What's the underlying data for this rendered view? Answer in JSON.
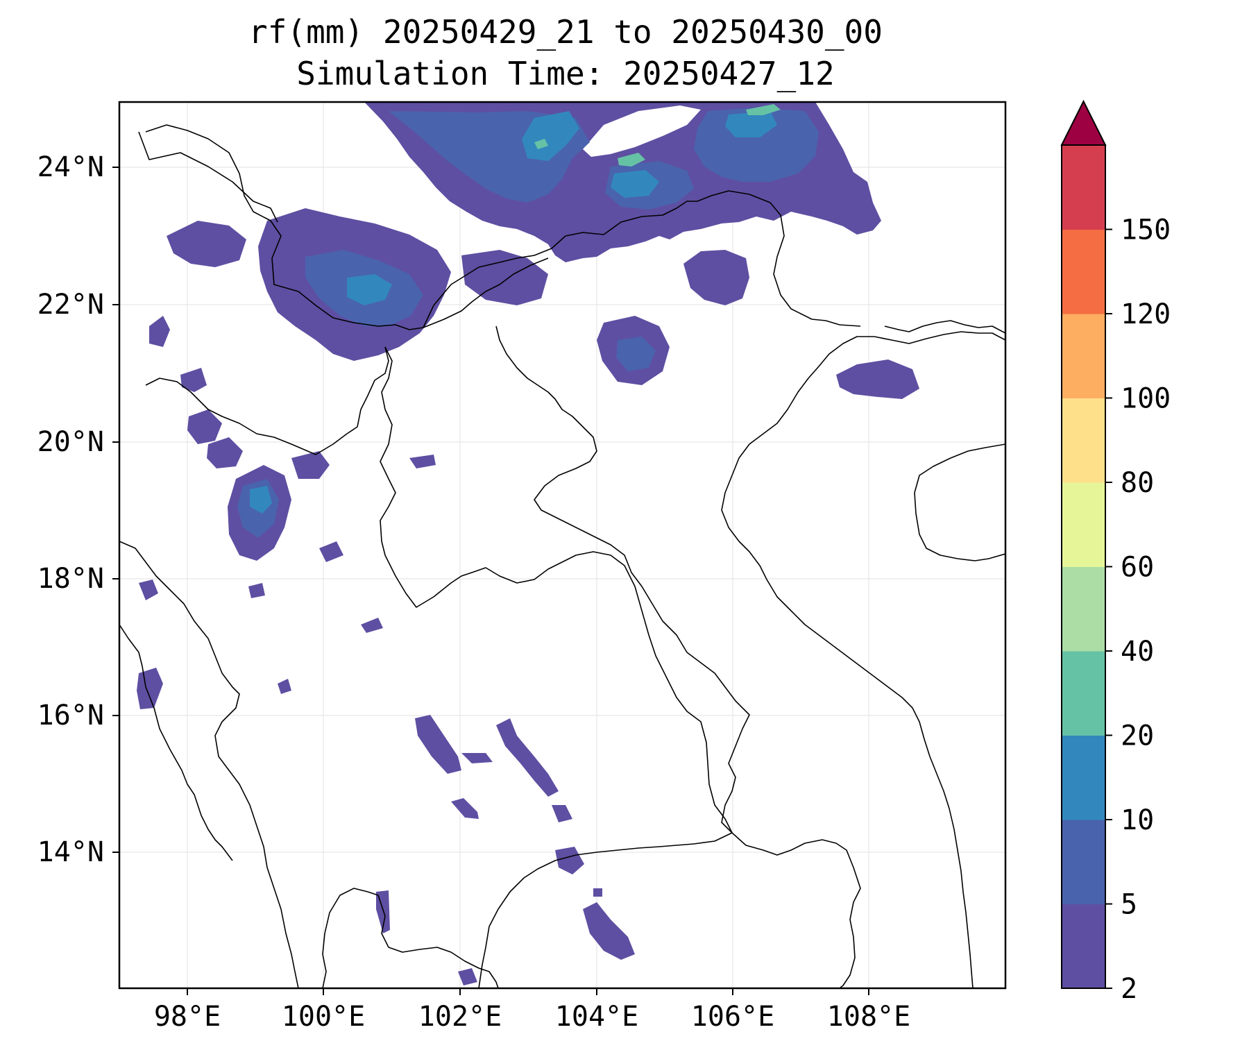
{
  "title": {
    "line1": "rf(mm) 20250429_21 to 20250430_00",
    "line2": "Simulation Time: 20250427_12"
  },
  "map": {
    "lon_range": [
      97,
      110
    ],
    "lat_range": [
      12,
      25
    ],
    "lon_ticks": [
      "98°E",
      "100°E",
      "102°E",
      "104°E",
      "106°E",
      "108°E"
    ],
    "lat_ticks": [
      "24°N",
      "22°N",
      "20°N",
      "18°N",
      "16°N",
      "14°N"
    ],
    "gridlines": true
  },
  "colorbar": {
    "levels": [
      "2",
      "5",
      "10",
      "20",
      "40",
      "60",
      "80",
      "100",
      "120",
      "150"
    ],
    "colors": [
      "#5e4fa2",
      "#4a63ad",
      "#3288bd",
      "#66c2a5",
      "#abdda4",
      "#e6f598",
      "#fee08b",
      "#fdae61",
      "#f46d43",
      "#d53e4f"
    ],
    "extend_color": "#9e0142",
    "extend": "max"
  },
  "colors": {
    "rain_light": "#5e4fa2",
    "rain_moderate": "#4a63ad",
    "rain_heavy": "#3288bd",
    "rain_intense": "#66c2a5",
    "coastline": "#000000"
  }
}
